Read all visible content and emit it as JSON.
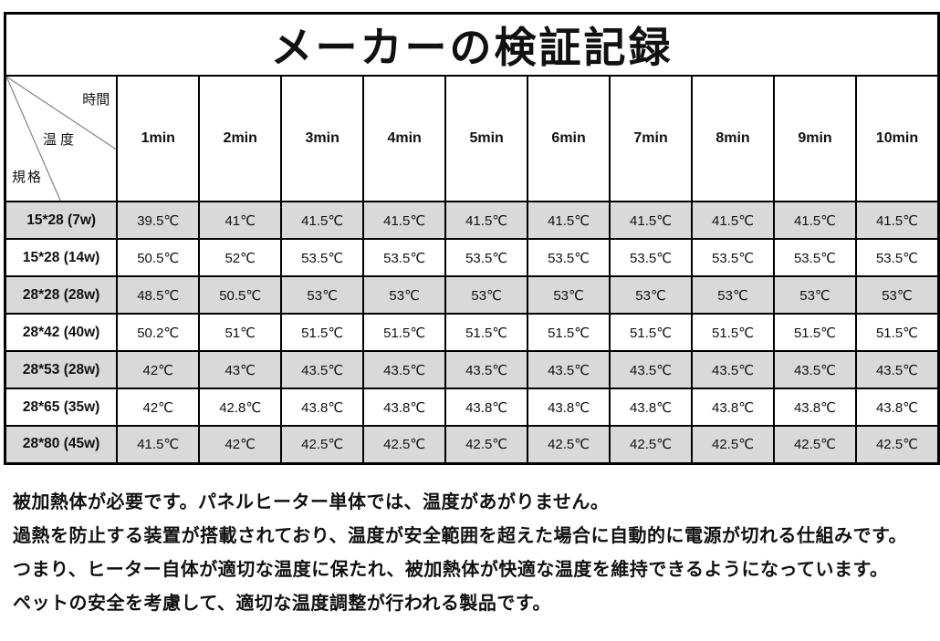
{
  "title": "メーカーの検証記録",
  "table": {
    "corner": {
      "top_right": "時間",
      "middle": "温度",
      "bottom_left": "規格"
    },
    "time_headers": [
      "1min",
      "2min",
      "3min",
      "4min",
      "5min",
      "6min",
      "7min",
      "8min",
      "9min",
      "10min"
    ],
    "rows": [
      {
        "spec": "15*28 (7w)",
        "values": [
          "39.5℃",
          "41℃",
          "41.5℃",
          "41.5℃",
          "41.5℃",
          "41.5℃",
          "41.5℃",
          "41.5℃",
          "41.5℃",
          "41.5℃"
        ]
      },
      {
        "spec": "15*28 (14w)",
        "values": [
          "50.5℃",
          "52℃",
          "53.5℃",
          "53.5℃",
          "53.5℃",
          "53.5℃",
          "53.5℃",
          "53.5℃",
          "53.5℃",
          "53.5℃"
        ]
      },
      {
        "spec": "28*28 (28w)",
        "values": [
          "48.5℃",
          "50.5℃",
          "53℃",
          "53℃",
          "53℃",
          "53℃",
          "53℃",
          "53℃",
          "53℃",
          "53℃"
        ]
      },
      {
        "spec": "28*42 (40w)",
        "values": [
          "50.2℃",
          "51℃",
          "51.5℃",
          "51.5℃",
          "51.5℃",
          "51.5℃",
          "51.5℃",
          "51.5℃",
          "51.5℃",
          "51.5℃"
        ]
      },
      {
        "spec": "28*53 (28w)",
        "values": [
          "42℃",
          "43℃",
          "43.5℃",
          "43.5℃",
          "43.5℃",
          "43.5℃",
          "43.5℃",
          "43.5℃",
          "43.5℃",
          "43.5℃"
        ]
      },
      {
        "spec": "28*65 (35w)",
        "values": [
          "42℃",
          "42.8℃",
          "43.8℃",
          "43.8℃",
          "43.8℃",
          "43.8℃",
          "43.8℃",
          "43.8℃",
          "43.8℃",
          "43.8℃"
        ]
      },
      {
        "spec": "28*80 (45w)",
        "values": [
          "41.5℃",
          "42℃",
          "42.5℃",
          "42.5℃",
          "42.5℃",
          "42.5℃",
          "42.5℃",
          "42.5℃",
          "42.5℃",
          "42.5℃"
        ]
      }
    ]
  },
  "notes": [
    "被加熱体が必要です。パネルヒーター単体では、温度があがりません。",
    "過熱を防止する装置が搭載されており、温度が安全範囲を超えた場合に自動的に電源が切れる仕組みです。",
    "つまり、ヒーター自体が適切な温度に保たれ、被加熱体が快適な温度を維持できるようになっています。",
    "ペットの安全を考慮して、適切な温度調整が行われる製品です。"
  ],
  "colors": {
    "row_stripe": "#d9d9d9",
    "border": "#000000",
    "diagonal_line": "#8a8a8a"
  }
}
